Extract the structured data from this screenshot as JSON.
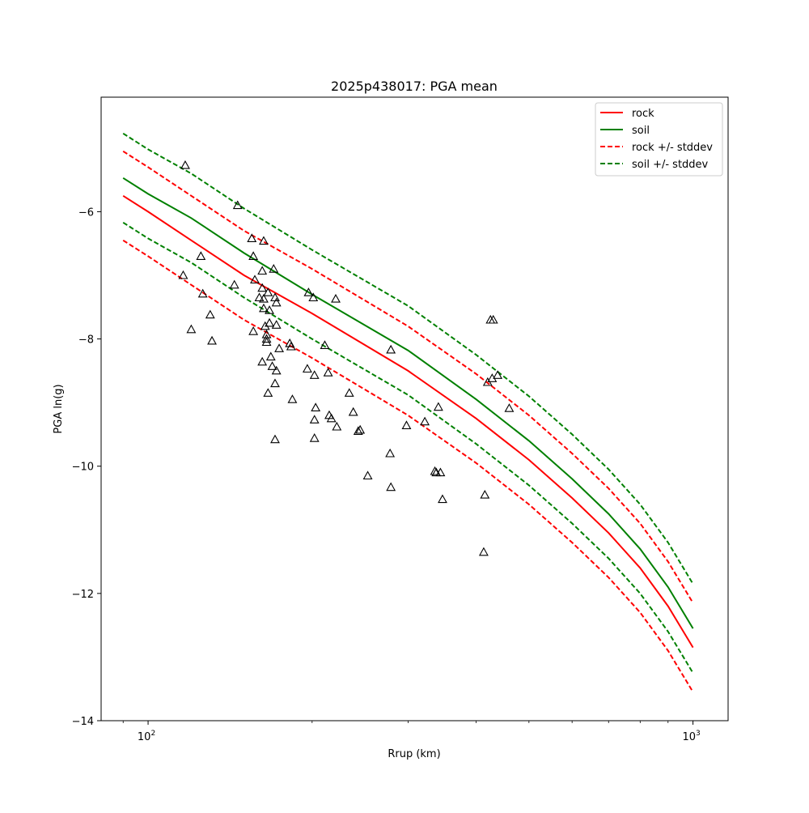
{
  "chart_data": {
    "type": "scatter",
    "title": "2025p438017: PGA mean",
    "xlabel": "Rrup (km)",
    "ylabel": "PGA ln(g)",
    "xscale": "log",
    "xlim": [
      82,
      1160
    ],
    "ylim": [
      -14,
      -4.2
    ],
    "xticks": [
      {
        "value": 100,
        "base": "10",
        "exp": "2"
      },
      {
        "value": 1000,
        "base": "10",
        "exp": "3"
      }
    ],
    "yticks": [
      -14,
      -12,
      -10,
      -8,
      -6
    ],
    "grid": false,
    "legend_placement": "upper right",
    "legend": [
      {
        "label": "rock",
        "color": "#ff0000",
        "dash": false
      },
      {
        "label": "soil",
        "color": "#008000",
        "dash": false
      },
      {
        "label": "rock +/- stddev",
        "color": "#ff0000",
        "dash": true
      },
      {
        "label": "soil +/- stddev",
        "color": "#008000",
        "dash": true
      }
    ],
    "curves": [
      {
        "name": "rock",
        "color": "#ff0000",
        "dash": false,
        "points": [
          [
            90,
            -5.75
          ],
          [
            100,
            -6.0
          ],
          [
            120,
            -6.45
          ],
          [
            150,
            -7.0
          ],
          [
            200,
            -7.6
          ],
          [
            300,
            -8.5
          ],
          [
            400,
            -9.25
          ],
          [
            500,
            -9.9
          ],
          [
            600,
            -10.5
          ],
          [
            700,
            -11.05
          ],
          [
            800,
            -11.6
          ],
          [
            900,
            -12.2
          ],
          [
            1000,
            -12.85
          ]
        ]
      },
      {
        "name": "soil",
        "color": "#008000",
        "dash": false,
        "points": [
          [
            90,
            -5.47
          ],
          [
            100,
            -5.72
          ],
          [
            120,
            -6.1
          ],
          [
            150,
            -6.65
          ],
          [
            200,
            -7.3
          ],
          [
            300,
            -8.18
          ],
          [
            400,
            -8.95
          ],
          [
            500,
            -9.6
          ],
          [
            600,
            -10.2
          ],
          [
            700,
            -10.75
          ],
          [
            800,
            -11.3
          ],
          [
            900,
            -11.9
          ],
          [
            1000,
            -12.55
          ]
        ]
      },
      {
        "name": "rock + stddev",
        "color": "#ff0000",
        "dash": true,
        "points": [
          [
            90,
            -5.05
          ],
          [
            100,
            -5.3
          ],
          [
            120,
            -5.75
          ],
          [
            150,
            -6.3
          ],
          [
            200,
            -6.9
          ],
          [
            300,
            -7.8
          ],
          [
            400,
            -8.55
          ],
          [
            500,
            -9.2
          ],
          [
            600,
            -9.8
          ],
          [
            700,
            -10.35
          ],
          [
            800,
            -10.9
          ],
          [
            900,
            -11.5
          ],
          [
            1000,
            -12.15
          ]
        ]
      },
      {
        "name": "rock - stddev",
        "color": "#ff0000",
        "dash": true,
        "points": [
          [
            90,
            -6.45
          ],
          [
            100,
            -6.7
          ],
          [
            120,
            -7.15
          ],
          [
            150,
            -7.7
          ],
          [
            200,
            -8.3
          ],
          [
            300,
            -9.2
          ],
          [
            400,
            -9.95
          ],
          [
            500,
            -10.6
          ],
          [
            600,
            -11.2
          ],
          [
            700,
            -11.75
          ],
          [
            800,
            -12.3
          ],
          [
            900,
            -12.9
          ],
          [
            1000,
            -13.55
          ]
        ]
      },
      {
        "name": "soil + stddev",
        "color": "#008000",
        "dash": true,
        "points": [
          [
            90,
            -4.77
          ],
          [
            100,
            -5.02
          ],
          [
            120,
            -5.4
          ],
          [
            150,
            -5.95
          ],
          [
            200,
            -6.6
          ],
          [
            300,
            -7.48
          ],
          [
            400,
            -8.25
          ],
          [
            500,
            -8.9
          ],
          [
            600,
            -9.5
          ],
          [
            700,
            -10.05
          ],
          [
            800,
            -10.6
          ],
          [
            900,
            -11.2
          ],
          [
            1000,
            -11.85
          ]
        ]
      },
      {
        "name": "soil - stddev",
        "color": "#008000",
        "dash": true,
        "points": [
          [
            90,
            -6.17
          ],
          [
            100,
            -6.42
          ],
          [
            120,
            -6.8
          ],
          [
            150,
            -7.35
          ],
          [
            200,
            -8.0
          ],
          [
            300,
            -8.88
          ],
          [
            400,
            -9.65
          ],
          [
            500,
            -10.3
          ],
          [
            600,
            -10.9
          ],
          [
            700,
            -11.45
          ],
          [
            800,
            -12.0
          ],
          [
            900,
            -12.6
          ],
          [
            1000,
            -13.25
          ]
        ]
      }
    ],
    "observations": [
      [
        117,
        -5.27
      ],
      [
        146,
        -5.9
      ],
      [
        155,
        -6.42
      ],
      [
        163,
        -6.46
      ],
      [
        125,
        -6.7
      ],
      [
        156,
        -6.7
      ],
      [
        170,
        -6.9
      ],
      [
        116,
        -7.0
      ],
      [
        162,
        -6.93
      ],
      [
        157,
        -7.07
      ],
      [
        144,
        -7.15
      ],
      [
        126,
        -7.29
      ],
      [
        162,
        -7.2
      ],
      [
        166,
        -7.27
      ],
      [
        160,
        -7.35
      ],
      [
        163,
        -7.37
      ],
      [
        171,
        -7.35
      ],
      [
        197,
        -7.27
      ],
      [
        201,
        -7.35
      ],
      [
        221,
        -7.37
      ],
      [
        172,
        -7.43
      ],
      [
        163,
        -7.52
      ],
      [
        167,
        -7.55
      ],
      [
        130,
        -7.62
      ],
      [
        120,
        -7.85
      ],
      [
        156,
        -7.88
      ],
      [
        164,
        -7.8
      ],
      [
        167,
        -7.75
      ],
      [
        172,
        -7.78
      ],
      [
        165,
        -7.93
      ],
      [
        165,
        -8.0
      ],
      [
        165,
        -8.05
      ],
      [
        131,
        -8.03
      ],
      [
        182,
        -8.07
      ],
      [
        183,
        -8.12
      ],
      [
        174,
        -8.15
      ],
      [
        211,
        -8.1
      ],
      [
        168,
        -8.28
      ],
      [
        162,
        -8.36
      ],
      [
        169,
        -8.43
      ],
      [
        172,
        -8.5
      ],
      [
        196,
        -8.47
      ],
      [
        202,
        -8.57
      ],
      [
        214,
        -8.53
      ],
      [
        171,
        -8.7
      ],
      [
        166,
        -8.85
      ],
      [
        184,
        -8.95
      ],
      [
        234,
        -8.85
      ],
      [
        203,
        -9.08
      ],
      [
        202,
        -9.27
      ],
      [
        215,
        -9.2
      ],
      [
        217,
        -9.25
      ],
      [
        222,
        -9.38
      ],
      [
        238,
        -9.15
      ],
      [
        243,
        -9.45
      ],
      [
        245,
        -9.43
      ],
      [
        171,
        -9.58
      ],
      [
        202,
        -9.56
      ],
      [
        279,
        -8.17
      ],
      [
        298,
        -9.36
      ],
      [
        322,
        -9.3
      ],
      [
        341,
        -9.07
      ],
      [
        278,
        -9.8
      ],
      [
        253,
        -10.15
      ],
      [
        279,
        -10.33
      ],
      [
        336,
        -10.08
      ],
      [
        338,
        -10.1
      ],
      [
        344,
        -10.1
      ],
      [
        347,
        -10.52
      ],
      [
        425,
        -7.7
      ],
      [
        430,
        -7.7
      ],
      [
        420,
        -8.68
      ],
      [
        428,
        -8.62
      ],
      [
        438,
        -8.57
      ],
      [
        460,
        -9.09
      ],
      [
        415,
        -10.45
      ],
      [
        413,
        -11.35
      ]
    ]
  }
}
